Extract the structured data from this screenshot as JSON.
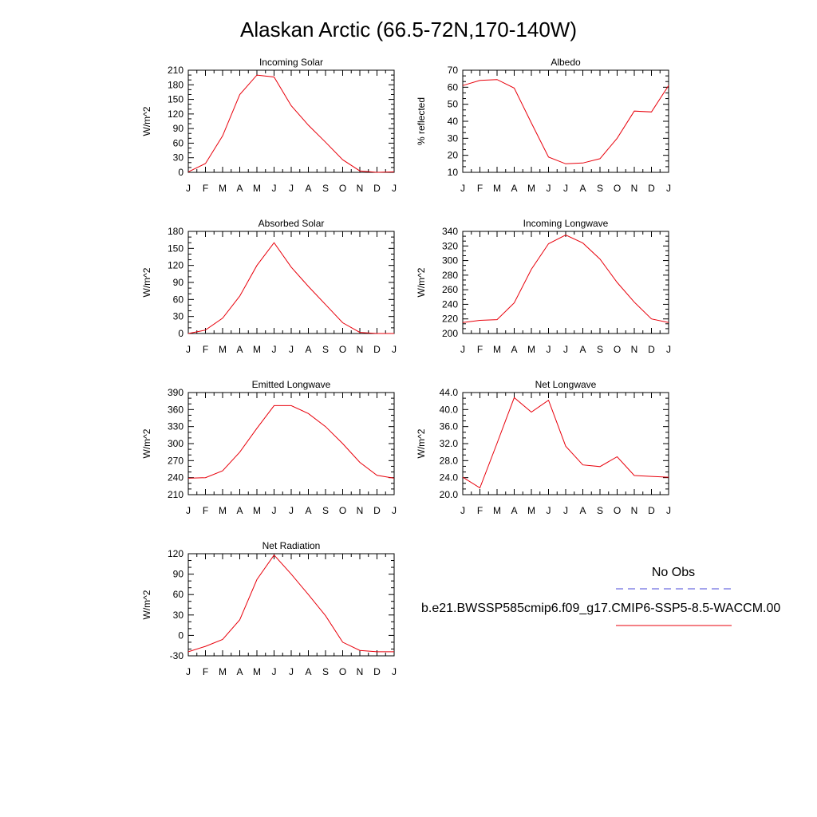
{
  "title": "Alaskan Arctic (66.5-72N,170-140W)",
  "months": [
    "J",
    "F",
    "M",
    "A",
    "M",
    "J",
    "J",
    "A",
    "S",
    "O",
    "N",
    "D",
    "J"
  ],
  "colors": {
    "model": "#e8000b",
    "obs": "#4a4ad8",
    "axis": "#000000"
  },
  "legend": {
    "obs_label": "No Obs",
    "model_label": "b.e21.BWSSP585cmip6.f09_g17.CMIP6-SSP5-8.5-WACCM.00"
  },
  "chart_data": [
    {
      "type": "line",
      "title": "Incoming Solar",
      "ylabel": "W/m^2",
      "ylim": [
        0,
        210
      ],
      "yticks": [
        0,
        30,
        60,
        90,
        120,
        150,
        180,
        210
      ],
      "ytick_labels": [
        "0",
        "30",
        "60",
        "90",
        "120",
        "150",
        "180",
        "210"
      ],
      "x": [
        "J",
        "F",
        "M",
        "A",
        "M",
        "J",
        "J",
        "A",
        "S",
        "O",
        "N",
        "D",
        "J"
      ],
      "series": [
        {
          "values": [
            1,
            18,
            75,
            160,
            200,
            196,
            137,
            97,
            62,
            26,
            3,
            0,
            1
          ]
        }
      ]
    },
    {
      "type": "line",
      "title": "Albedo",
      "ylabel": "% reflected",
      "ylim": [
        10,
        70
      ],
      "yticks": [
        10,
        20,
        30,
        40,
        50,
        60,
        70
      ],
      "ytick_labels": [
        "10",
        "20",
        "30",
        "40",
        "50",
        "60",
        "70"
      ],
      "x": [
        "J",
        "F",
        "M",
        "A",
        "M",
        "J",
        "J",
        "A",
        "S",
        "O",
        "N",
        "D",
        "J"
      ],
      "series": [
        {
          "values": [
            61,
            64,
            64.5,
            59.5,
            39,
            19,
            15,
            15.5,
            18,
            30,
            46,
            45.5,
            61
          ]
        }
      ]
    },
    {
      "type": "line",
      "title": "Absorbed Solar",
      "ylabel": "W/m^2",
      "ylim": [
        0,
        180
      ],
      "yticks": [
        0,
        30,
        60,
        90,
        120,
        150,
        180
      ],
      "ytick_labels": [
        "0",
        "30",
        "60",
        "90",
        "120",
        "150",
        "180"
      ],
      "x": [
        "J",
        "F",
        "M",
        "A",
        "M",
        "J",
        "J",
        "A",
        "S",
        "O",
        "N",
        "D",
        "J"
      ],
      "series": [
        {
          "values": [
            0,
            6,
            27,
            66,
            120,
            160,
            117,
            83,
            51,
            19,
            2,
            0,
            0
          ]
        }
      ]
    },
    {
      "type": "line",
      "title": "Incoming Longwave",
      "ylabel": "W/m^2",
      "ylim": [
        200,
        340
      ],
      "yticks": [
        200,
        220,
        240,
        260,
        280,
        300,
        320,
        340
      ],
      "ytick_labels": [
        "200",
        "220",
        "240",
        "260",
        "280",
        "300",
        "320",
        "340"
      ],
      "x": [
        "J",
        "F",
        "M",
        "A",
        "M",
        "J",
        "J",
        "A",
        "S",
        "O",
        "N",
        "D",
        "J"
      ],
      "series": [
        {
          "values": [
            215,
            218,
            219,
            242,
            288,
            323,
            335,
            324,
            302,
            270,
            243,
            220,
            215
          ]
        }
      ]
    },
    {
      "type": "line",
      "title": "Emitted Longwave",
      "ylabel": "W/m^2",
      "ylim": [
        210,
        390
      ],
      "yticks": [
        210,
        240,
        270,
        300,
        330,
        360,
        390
      ],
      "ytick_labels": [
        "210",
        "240",
        "270",
        "300",
        "330",
        "360",
        "390"
      ],
      "x": [
        "J",
        "F",
        "M",
        "A",
        "M",
        "J",
        "J",
        "A",
        "S",
        "O",
        "N",
        "D",
        "J"
      ],
      "series": [
        {
          "values": [
            239,
            240,
            252,
            285,
            327,
            367,
            367,
            353,
            330,
            300,
            267,
            244,
            239
          ]
        }
      ]
    },
    {
      "type": "line",
      "title": "Net Longwave",
      "ylabel": "W/m^2",
      "ylim": [
        20,
        44
      ],
      "yticks": [
        20,
        24,
        28,
        32,
        36,
        40,
        44
      ],
      "ytick_labels": [
        "20.0",
        "24.0",
        "28.0",
        "32.0",
        "36.0",
        "40.0",
        "44.0"
      ],
      "x": [
        "J",
        "F",
        "M",
        "A",
        "M",
        "J",
        "J",
        "A",
        "S",
        "O",
        "N",
        "D",
        "J"
      ],
      "series": [
        {
          "values": [
            24.1,
            21.6,
            32.1,
            42.8,
            39.4,
            42.2,
            31.4,
            27.0,
            26.6,
            28.9,
            24.5,
            24.3,
            24.1
          ]
        }
      ]
    },
    {
      "type": "line",
      "title": "Net Radiation",
      "ylabel": "W/m^2",
      "ylim": [
        -30,
        120
      ],
      "yticks": [
        -30,
        0,
        30,
        60,
        90,
        120
      ],
      "ytick_labels": [
        "-30",
        "0",
        "30",
        "60",
        "90",
        "120"
      ],
      "x": [
        "J",
        "F",
        "M",
        "A",
        "M",
        "J",
        "J",
        "A",
        "S",
        "O",
        "N",
        "D",
        "J"
      ],
      "series": [
        {
          "values": [
            -24,
            -16,
            -6,
            23,
            82,
            118,
            90,
            60,
            29,
            -10,
            -22,
            -24,
            -24
          ]
        }
      ]
    }
  ]
}
